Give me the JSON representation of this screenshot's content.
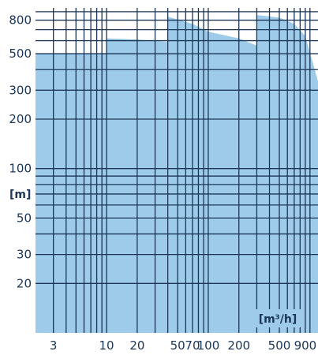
{
  "chart_data": {
    "type": "area",
    "title": "",
    "xlabel": "",
    "ylabel": "",
    "x_unit": "[m³/h]",
    "y_unit": "[m]",
    "x_scale": "log",
    "y_scale": "log",
    "xlim": [
      2,
      1200
    ],
    "ylim": [
      10,
      950
    ],
    "grid": true,
    "x_ticks": [
      {
        "value": 3,
        "label": "3"
      },
      {
        "value": 10,
        "label": "10"
      },
      {
        "value": 20,
        "label": "20"
      },
      {
        "value": 50,
        "label": "50"
      },
      {
        "value": 100,
        "label": "100"
      },
      {
        "value": 200,
        "label": "200"
      },
      {
        "value": 500,
        "label": "500"
      },
      {
        "value": 900,
        "label": "900"
      }
    ],
    "x_extra_labels": [
      {
        "value": 70,
        "label": "70"
      }
    ],
    "y_ticks": [
      {
        "value": 20,
        "label": "20"
      },
      {
        "value": 30,
        "label": "30"
      },
      {
        "value": 50,
        "label": "50"
      },
      {
        "value": 100,
        "label": "100"
      },
      {
        "value": 200,
        "label": "200"
      },
      {
        "value": 300,
        "label": "300"
      },
      {
        "value": 500,
        "label": "500"
      },
      {
        "value": 800,
        "label": "800"
      }
    ],
    "x_grid": [
      3,
      4,
      5,
      6,
      7,
      8,
      9,
      10,
      20,
      30,
      40,
      50,
      60,
      70,
      80,
      90,
      100,
      200,
      300,
      400,
      500,
      600,
      700,
      800,
      900,
      1000
    ],
    "y_grid": [
      20,
      30,
      40,
      50,
      60,
      70,
      80,
      90,
      100,
      200,
      300,
      400,
      500,
      600,
      700,
      800,
      900
    ],
    "series": [
      {
        "x": [
          2,
          10,
          10,
          20,
          40,
          40,
          70,
          100,
          200,
          300,
          300,
          500,
          700,
          900,
          1200
        ],
        "y": [
          500,
          500,
          620,
          610,
          590,
          840,
          760,
          680,
          620,
          560,
          860,
          830,
          760,
          640,
          340
        ]
      }
    ],
    "colors": {
      "area": "#9ecbe9",
      "grid": "#1b3556",
      "text": "#1b3556"
    }
  }
}
